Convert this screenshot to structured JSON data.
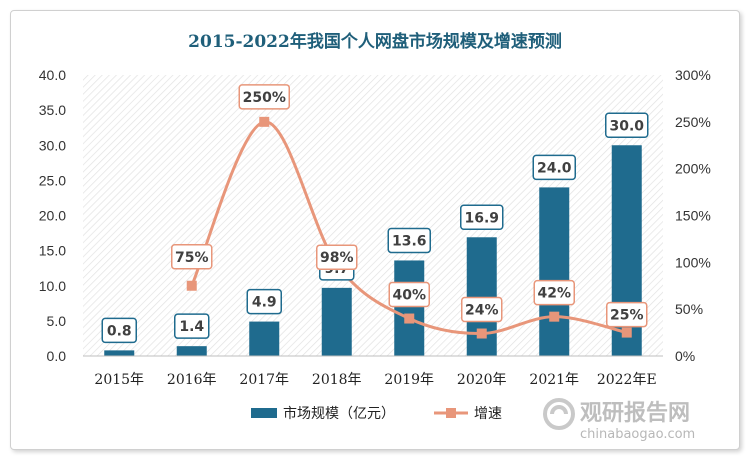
{
  "chart_data": {
    "type": "bar",
    "title": "2015-2022年我国个人网盘市场规模及增速预测",
    "categories": [
      "2015年",
      "2016年",
      "2017年",
      "2018年",
      "2019年",
      "2020年",
      "2021年",
      "2022年E"
    ],
    "series": [
      {
        "name": "市场规模（亿元）",
        "type": "bar",
        "axis": "left",
        "color": "#1f6b8e",
        "values": [
          0.8,
          1.4,
          4.9,
          9.7,
          13.6,
          16.9,
          24.0,
          30.0
        ],
        "labels": [
          "0.8",
          "1.4",
          "4.9",
          "9.7",
          "13.6",
          "16.9",
          "24.0",
          "30.0"
        ]
      },
      {
        "name": "增速",
        "type": "line",
        "axis": "right",
        "color": "#e8967a",
        "values": [
          null,
          75,
          250,
          98,
          40,
          24,
          42,
          25
        ],
        "labels": [
          "",
          "75%",
          "250%",
          "98%",
          "40%",
          "24%",
          "42%",
          "25%"
        ]
      }
    ],
    "y_left": {
      "ylim": [
        0,
        40
      ],
      "ticks": [
        "0.0",
        "5.0",
        "10.0",
        "15.0",
        "20.0",
        "25.0",
        "30.0",
        "35.0",
        "40.0"
      ]
    },
    "y_right": {
      "ylim": [
        0,
        300
      ],
      "ticks": [
        "0%",
        "50%",
        "100%",
        "150%",
        "200%",
        "250%",
        "300%"
      ]
    },
    "legend_position": "bottom",
    "plot_background": "diagonal-hatch"
  },
  "watermark": {
    "brand": "观研报告网",
    "url": "chinabaogao.com"
  }
}
